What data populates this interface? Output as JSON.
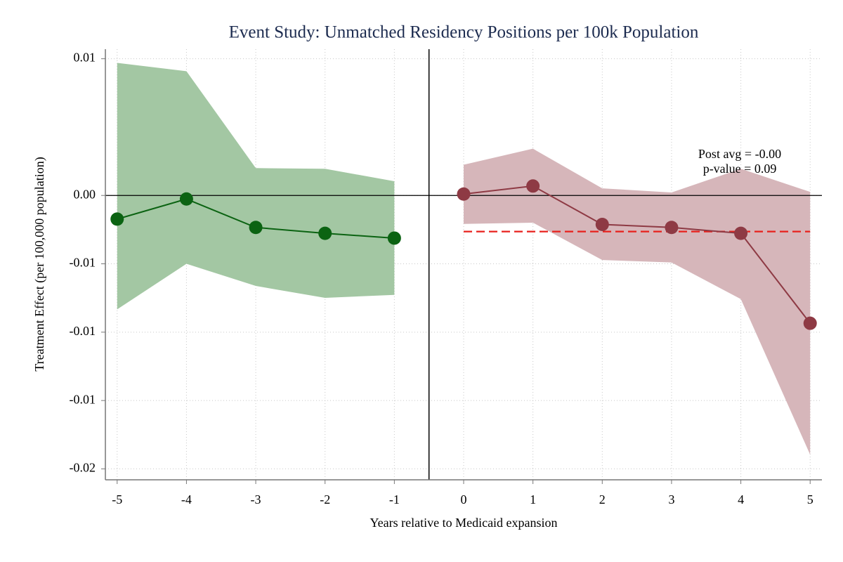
{
  "chart_data": {
    "type": "event-study",
    "title": "Event Study: Unmatched Residency Positions per 100k Population",
    "x_label": "Years relative to Medicaid expansion",
    "y_label": "Treatment Effect (per 100,000 population)",
    "xlim": [
      -5.17,
      5.17
    ],
    "ylim": [
      -0.0208,
      0.0107
    ],
    "xticks": [
      -5,
      -4,
      -3,
      -2,
      -1,
      0,
      1,
      2,
      3,
      4,
      5
    ],
    "yticks": [
      0.01,
      {
        "value": 0,
        "label": "0.00"
      },
      {
        "value": -0.005,
        "label": "-0.01"
      },
      -0.01,
      {
        "value": -0.015,
        "label": "-0.01"
      },
      -0.02
    ],
    "grid": true,
    "hline": 0,
    "vline": -0.5,
    "series": [
      {
        "x": [
          -5,
          -4,
          -3,
          -2,
          -1
        ],
        "values": [
          -0.00173,
          -0.00026,
          -0.00234,
          -0.00277,
          -0.00312
        ],
        "lower": [
          -0.00833,
          -0.005,
          -0.00662,
          -0.00749,
          -0.00727
        ],
        "upper": [
          0.0097,
          0.00909,
          0.002,
          0.00195,
          0.00104
        ],
        "color": "#0b6312",
        "band_color": "#a3c7a3"
      },
      {
        "x": [
          0,
          1,
          2,
          3,
          4,
          5
        ],
        "values": [
          0.0001,
          0.00069,
          -0.00212,
          -0.00234,
          -0.00277,
          -0.00935
        ],
        "lower": [
          -0.00208,
          -0.00199,
          -0.00472,
          -0.0049,
          -0.00758,
          -0.01896
        ],
        "upper": [
          0.00225,
          0.00342,
          0.00052,
          0.00022,
          0.00195,
          0.00026
        ],
        "color": "#8e3a44",
        "band_color": "#d6b6ba"
      }
    ],
    "reference_line": {
      "value": -0.00264,
      "x": [
        0,
        5
      ],
      "color": "#e8201c"
    },
    "annotations": [
      "Post avg = -0.00",
      "p-value = 0.09"
    ]
  }
}
